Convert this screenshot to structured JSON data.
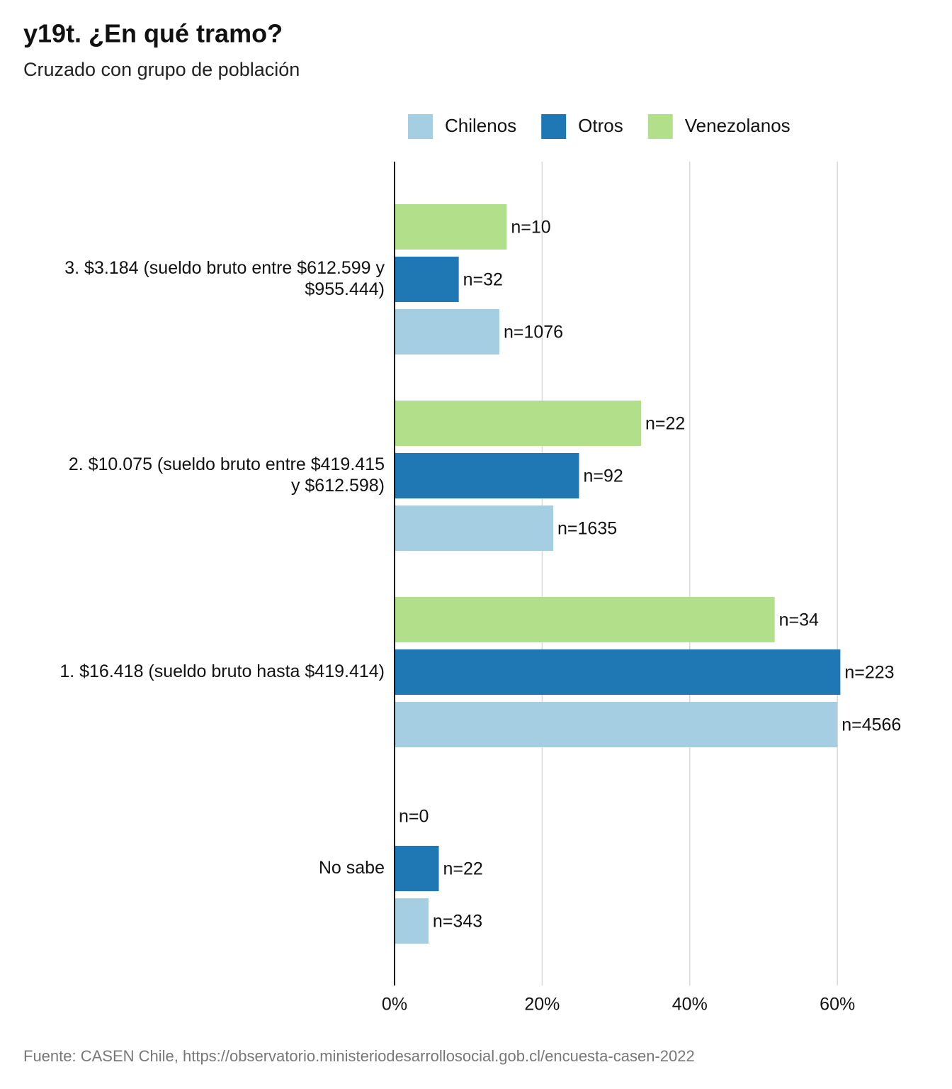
{
  "chart_data": {
    "type": "barh",
    "title": "y19t. ¿En qué tramo?",
    "subtitle": "Cruzado con grupo de población",
    "source": "Fuente: CASEN Chile, https://observatorio.ministeriodesarrollosocial.gob.cl/encuesta-casen-2022",
    "categories": [
      "3. $3.184 (sueldo bruto entre $612.599 y\n$955.444)",
      "2. $10.075 (sueldo bruto entre $419.415\ny $612.598)",
      "1. $16.418 (sueldo bruto hasta $419.414)",
      "No sabe"
    ],
    "series": [
      {
        "name": "Chilenos",
        "color": "#a6cee3",
        "values": [
          14.2,
          21.5,
          60.0,
          4.6
        ],
        "labels": [
          "n=1076",
          "n=1635",
          "n=4566",
          "n=343"
        ]
      },
      {
        "name": "Otros",
        "color": "#1f78b4",
        "values": [
          8.7,
          25.0,
          60.4,
          6.0
        ],
        "labels": [
          "n=32",
          "n=92",
          "n=223",
          "n=22"
        ]
      },
      {
        "name": "Venezolanos",
        "color": "#b2df8a",
        "values": [
          15.2,
          33.4,
          51.5,
          0
        ],
        "labels": [
          "n=10",
          "n=22",
          "n=34",
          "n=0"
        ]
      }
    ],
    "xlim": [
      0,
      70
    ],
    "xticks": [
      {
        "value": 0,
        "label": "0%"
      },
      {
        "value": 20,
        "label": "20%"
      },
      {
        "value": 40,
        "label": "40%"
      },
      {
        "value": 60,
        "label": "60%"
      }
    ],
    "grid": true,
    "legend": "top"
  }
}
